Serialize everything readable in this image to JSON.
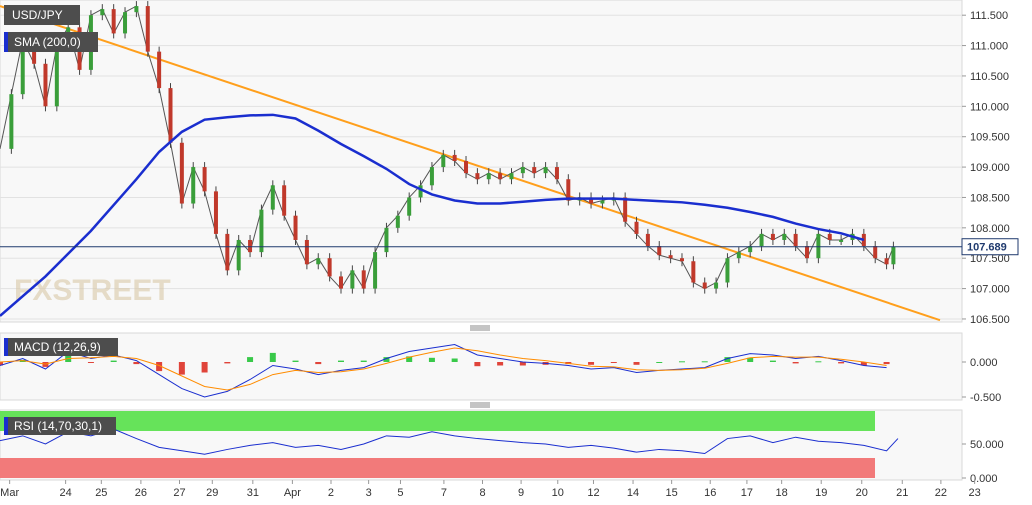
{
  "chart_data": {
    "type": "line",
    "symbol": "USD/JPY",
    "indicators": {
      "sma": {
        "label": "SMA (200,0)",
        "color": "#1a2ecf"
      },
      "macd": {
        "label": "MACD (12,26,9)",
        "macd_color": "#1a2ecf",
        "signal_color": "#ff8c00"
      },
      "rsi": {
        "label": "RSI (14,70,30,1)",
        "overbought": 70,
        "oversold": 30,
        "line_color": "#1a2ecf"
      }
    },
    "trendline": {
      "color": "#ff9f1c",
      "from": [
        0.0,
        111.65
      ],
      "to": [
        41.35,
        106.48
      ]
    },
    "current_price": {
      "value": 107.689,
      "label": "107.689",
      "color": "#1f3a6e"
    },
    "price_axis": {
      "ticks": [
        "111.500",
        "111.000",
        "110.500",
        "110.000",
        "109.500",
        "109.000",
        "108.500",
        "108.000",
        "107.500",
        "107.000",
        "106.500"
      ],
      "ylim": [
        106.45,
        111.75
      ]
    },
    "macd_axis": {
      "ticks": [
        "0.000",
        "-0.500"
      ]
    },
    "rsi_axis": {
      "ticks": [
        "50.000",
        "0.000"
      ]
    },
    "x_ticks": [
      "Mar",
      "24",
      "25",
      "26",
      "27",
      "29",
      "31",
      "Apr",
      "2",
      "3",
      "5",
      "7",
      "8",
      "9",
      "10",
      "12",
      "14",
      "15",
      "16",
      "17",
      "18",
      "19",
      "20",
      "21",
      "22",
      "23"
    ],
    "sma_series": [
      [
        0,
        106.55
      ],
      [
        2,
        107.2
      ],
      [
        4,
        107.95
      ],
      [
        6,
        108.8
      ],
      [
        7,
        109.25
      ],
      [
        8,
        109.58
      ],
      [
        9,
        109.78
      ],
      [
        10,
        109.82
      ],
      [
        11,
        109.85
      ],
      [
        12,
        109.86
      ],
      [
        13,
        109.8
      ],
      [
        14,
        109.6
      ],
      [
        15,
        109.38
      ],
      [
        16,
        109.18
      ],
      [
        17,
        108.97
      ],
      [
        18,
        108.72
      ],
      [
        19,
        108.55
      ],
      [
        20,
        108.45
      ],
      [
        21,
        108.4
      ],
      [
        22,
        108.4
      ],
      [
        23,
        108.43
      ],
      [
        24,
        108.46
      ],
      [
        25,
        108.48
      ],
      [
        26,
        108.48
      ],
      [
        27,
        108.48
      ],
      [
        28,
        108.46
      ],
      [
        29,
        108.44
      ],
      [
        30,
        108.42
      ],
      [
        31,
        108.38
      ],
      [
        32,
        108.33
      ],
      [
        33,
        108.26
      ],
      [
        34,
        108.18
      ],
      [
        35,
        108.07
      ],
      [
        36,
        107.98
      ],
      [
        37,
        107.91
      ],
      [
        38,
        107.8
      ]
    ],
    "price_path": [
      [
        0,
        109.3
      ],
      [
        0.5,
        110.2
      ],
      [
        1,
        111.1
      ],
      [
        1.5,
        110.7
      ],
      [
        2,
        110.0
      ],
      [
        2.5,
        111.0
      ],
      [
        3,
        111.3
      ],
      [
        3.5,
        110.6
      ],
      [
        4,
        111.5
      ],
      [
        4.5,
        111.6
      ],
      [
        5,
        111.2
      ],
      [
        5.5,
        111.55
      ],
      [
        6,
        111.65
      ],
      [
        6.5,
        110.9
      ],
      [
        7,
        110.3
      ],
      [
        7.5,
        109.4
      ],
      [
        8,
        108.4
      ],
      [
        8.5,
        109.0
      ],
      [
        9,
        108.6
      ],
      [
        9.5,
        107.9
      ],
      [
        10,
        107.3
      ],
      [
        10.5,
        107.8
      ],
      [
        11,
        107.6
      ],
      [
        11.5,
        108.3
      ],
      [
        12,
        108.7
      ],
      [
        12.5,
        108.2
      ],
      [
        13,
        107.8
      ],
      [
        13.5,
        107.4
      ],
      [
        14,
        107.5
      ],
      [
        14.5,
        107.2
      ],
      [
        15,
        107.0
      ],
      [
        15.5,
        107.3
      ],
      [
        16,
        107.0
      ],
      [
        16.5,
        107.6
      ],
      [
        17,
        108.0
      ],
      [
        17.5,
        108.2
      ],
      [
        18,
        108.5
      ],
      [
        18.5,
        108.7
      ],
      [
        19,
        109.0
      ],
      [
        19.5,
        109.2
      ],
      [
        20,
        109.1
      ],
      [
        20.5,
        108.9
      ],
      [
        21,
        108.8
      ],
      [
        21.5,
        108.9
      ],
      [
        22,
        108.8
      ],
      [
        22.5,
        108.9
      ],
      [
        23,
        109.0
      ],
      [
        23.5,
        108.9
      ],
      [
        24,
        109.0
      ],
      [
        24.5,
        108.8
      ],
      [
        25,
        108.45
      ],
      [
        25.5,
        108.5
      ],
      [
        26,
        108.4
      ],
      [
        26.5,
        108.45
      ],
      [
        27,
        108.5
      ],
      [
        27.5,
        108.1
      ],
      [
        28,
        107.9
      ],
      [
        28.5,
        107.7
      ],
      [
        29,
        107.55
      ],
      [
        29.5,
        107.5
      ],
      [
        30,
        107.45
      ],
      [
        30.5,
        107.1
      ],
      [
        31,
        107.0
      ],
      [
        31.5,
        107.1
      ],
      [
        32,
        107.5
      ],
      [
        32.5,
        107.6
      ],
      [
        33,
        107.7
      ],
      [
        33.5,
        107.9
      ],
      [
        34,
        107.8
      ],
      [
        34.5,
        107.9
      ],
      [
        35,
        107.7
      ],
      [
        35.5,
        107.5
      ],
      [
        36,
        107.9
      ],
      [
        36.5,
        107.8
      ],
      [
        37,
        107.8
      ],
      [
        37.5,
        107.9
      ],
      [
        38,
        107.7
      ],
      [
        38.5,
        107.5
      ],
      [
        39,
        107.4
      ],
      [
        39.3,
        107.69
      ]
    ],
    "macd_series": [
      [
        0,
        -0.05
      ],
      [
        1,
        0.05
      ],
      [
        2,
        -0.1
      ],
      [
        3,
        0.15
      ],
      [
        4,
        0.05
      ],
      [
        5,
        0.1
      ],
      [
        6,
        0.02
      ],
      [
        7,
        -0.18
      ],
      [
        8,
        -0.38
      ],
      [
        9,
        -0.5
      ],
      [
        10,
        -0.42
      ],
      [
        11,
        -0.25
      ],
      [
        12,
        -0.05
      ],
      [
        13,
        -0.1
      ],
      [
        14,
        -0.18
      ],
      [
        15,
        -0.12
      ],
      [
        16,
        -0.08
      ],
      [
        17,
        0.05
      ],
      [
        18,
        0.15
      ],
      [
        19,
        0.2
      ],
      [
        20,
        0.25
      ],
      [
        21,
        0.1
      ],
      [
        22,
        0.05
      ],
      [
        23,
        0.0
      ],
      [
        24,
        -0.02
      ],
      [
        25,
        -0.05
      ],
      [
        26,
        -0.1
      ],
      [
        27,
        -0.08
      ],
      [
        28,
        -0.15
      ],
      [
        29,
        -0.12
      ],
      [
        30,
        -0.1
      ],
      [
        31,
        -0.08
      ],
      [
        32,
        0.05
      ],
      [
        33,
        0.12
      ],
      [
        34,
        0.1
      ],
      [
        35,
        0.05
      ],
      [
        36,
        0.08
      ],
      [
        37,
        0.02
      ],
      [
        38,
        -0.05
      ],
      [
        39,
        -0.08
      ]
    ],
    "signal_series": [
      [
        0,
        0.0
      ],
      [
        1,
        0.02
      ],
      [
        2,
        -0.03
      ],
      [
        3,
        0.05
      ],
      [
        4,
        0.06
      ],
      [
        5,
        0.08
      ],
      [
        6,
        0.05
      ],
      [
        7,
        -0.05
      ],
      [
        8,
        -0.2
      ],
      [
        9,
        -0.35
      ],
      [
        10,
        -0.4
      ],
      [
        11,
        -0.32
      ],
      [
        12,
        -0.18
      ],
      [
        13,
        -0.12
      ],
      [
        14,
        -0.15
      ],
      [
        15,
        -0.14
      ],
      [
        16,
        -0.1
      ],
      [
        17,
        -0.02
      ],
      [
        18,
        0.07
      ],
      [
        19,
        0.14
      ],
      [
        20,
        0.2
      ],
      [
        21,
        0.16
      ],
      [
        22,
        0.1
      ],
      [
        23,
        0.05
      ],
      [
        24,
        0.02
      ],
      [
        25,
        -0.02
      ],
      [
        26,
        -0.06
      ],
      [
        27,
        -0.07
      ],
      [
        28,
        -0.11
      ],
      [
        29,
        -0.12
      ],
      [
        30,
        -0.11
      ],
      [
        31,
        -0.09
      ],
      [
        32,
        -0.02
      ],
      [
        33,
        0.06
      ],
      [
        34,
        0.08
      ],
      [
        35,
        0.07
      ],
      [
        36,
        0.07
      ],
      [
        37,
        0.04
      ],
      [
        38,
        0.0
      ],
      [
        39,
        -0.05
      ]
    ],
    "rsi_series": [
      [
        0,
        55
      ],
      [
        1,
        62
      ],
      [
        2,
        50
      ],
      [
        3,
        68
      ],
      [
        4,
        62
      ],
      [
        5,
        72
      ],
      [
        6,
        58
      ],
      [
        7,
        45
      ],
      [
        8,
        40
      ],
      [
        9,
        35
      ],
      [
        10,
        42
      ],
      [
        11,
        48
      ],
      [
        12,
        52
      ],
      [
        13,
        45
      ],
      [
        14,
        48
      ],
      [
        15,
        42
      ],
      [
        16,
        50
      ],
      [
        17,
        62
      ],
      [
        18,
        60
      ],
      [
        19,
        68
      ],
      [
        20,
        62
      ],
      [
        21,
        58
      ],
      [
        22,
        55
      ],
      [
        23,
        52
      ],
      [
        24,
        50
      ],
      [
        25,
        45
      ],
      [
        26,
        48
      ],
      [
        27,
        44
      ],
      [
        28,
        38
      ],
      [
        29,
        42
      ],
      [
        30,
        40
      ],
      [
        31,
        36
      ],
      [
        32,
        58
      ],
      [
        33,
        62
      ],
      [
        34,
        52
      ],
      [
        35,
        60
      ],
      [
        36,
        54
      ],
      [
        37,
        52
      ],
      [
        38,
        48
      ],
      [
        39,
        40
      ],
      [
        39.5,
        58
      ]
    ],
    "watermark": "FXSTREET"
  }
}
